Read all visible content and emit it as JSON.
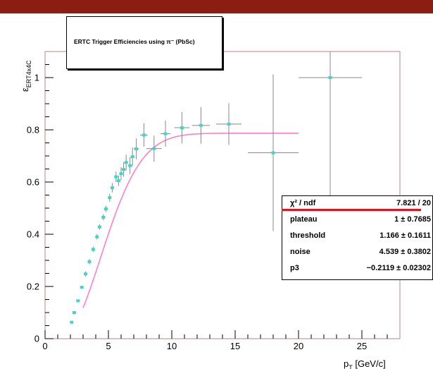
{
  "colors": {
    "top_bar": "#8c1d12",
    "frame": "#c08080",
    "fit_curve": "#ff7fc8",
    "points": "#3ed6c8",
    "error_bars": "#888888",
    "underline": "#e0141c"
  },
  "chart_data": {
    "type": "scatter",
    "title": "ERTC Trigger Efficiencies using π⁻ (PbSc)",
    "xlabel": "p_T [GeV/c]",
    "ylabel": "ε_ERT4x4C",
    "xlim": [
      0,
      28
    ],
    "ylim": [
      0,
      1.1
    ],
    "x_ticks": [
      "0",
      "5",
      "10",
      "15",
      "20",
      "25"
    ],
    "y_ticks": [
      "0",
      "0.2",
      "0.4",
      "0.6",
      "0.8",
      "1"
    ],
    "grid": false,
    "series": [
      {
        "points": [
          {
            "x": 2.1,
            "y": 0.063,
            "xerr": 0.1,
            "yerr": 0.0
          },
          {
            "x": 2.3,
            "y": 0.1,
            "xerr": 0.1,
            "yerr": 0.0
          },
          {
            "x": 2.6,
            "y": 0.145,
            "xerr": 0.1,
            "yerr": 0.0
          },
          {
            "x": 2.9,
            "y": 0.197,
            "xerr": 0.1,
            "yerr": 0.0
          },
          {
            "x": 3.2,
            "y": 0.248,
            "xerr": 0.1,
            "yerr": 0.01
          },
          {
            "x": 3.5,
            "y": 0.295,
            "xerr": 0.1,
            "yerr": 0.01
          },
          {
            "x": 3.8,
            "y": 0.342,
            "xerr": 0.1,
            "yerr": 0.01
          },
          {
            "x": 4.1,
            "y": 0.39,
            "xerr": 0.1,
            "yerr": 0.01
          },
          {
            "x": 4.3,
            "y": 0.428,
            "xerr": 0.1,
            "yerr": 0.01
          },
          {
            "x": 4.6,
            "y": 0.465,
            "xerr": 0.1,
            "yerr": 0.012
          },
          {
            "x": 4.8,
            "y": 0.497,
            "xerr": 0.1,
            "yerr": 0.012
          },
          {
            "x": 5.1,
            "y": 0.54,
            "xerr": 0.1,
            "yerr": 0.015
          },
          {
            "x": 5.3,
            "y": 0.578,
            "xerr": 0.1,
            "yerr": 0.018
          },
          {
            "x": 5.6,
            "y": 0.62,
            "xerr": 0.1,
            "yerr": 0.02
          },
          {
            "x": 5.8,
            "y": 0.605,
            "xerr": 0.1,
            "yerr": 0.02
          },
          {
            "x": 6.0,
            "y": 0.632,
            "xerr": 0.1,
            "yerr": 0.025
          },
          {
            "x": 6.2,
            "y": 0.648,
            "xerr": 0.15,
            "yerr": 0.028
          },
          {
            "x": 6.4,
            "y": 0.675,
            "xerr": 0.15,
            "yerr": 0.03
          },
          {
            "x": 6.7,
            "y": 0.663,
            "xerr": 0.15,
            "yerr": 0.032
          },
          {
            "x": 6.9,
            "y": 0.697,
            "xerr": 0.15,
            "yerr": 0.035
          },
          {
            "x": 7.2,
            "y": 0.727,
            "xerr": 0.2,
            "yerr": 0.04
          },
          {
            "x": 7.8,
            "y": 0.78,
            "xerr": 0.3,
            "yerr": 0.045
          },
          {
            "x": 8.6,
            "y": 0.728,
            "xerr": 0.6,
            "yerr": 0.05
          },
          {
            "x": 9.5,
            "y": 0.785,
            "xerr": 0.4,
            "yerr": 0.05
          },
          {
            "x": 10.8,
            "y": 0.808,
            "xerr": 0.6,
            "yerr": 0.06
          },
          {
            "x": 12.3,
            "y": 0.817,
            "xerr": 0.7,
            "yerr": 0.07
          },
          {
            "x": 14.5,
            "y": 0.822,
            "xerr": 1.0,
            "yerr": 0.08
          },
          {
            "x": 18.0,
            "y": 0.712,
            "xerr": 2.0,
            "yerr": 0.3
          },
          {
            "x": 22.5,
            "y": 1.0,
            "xerr": 2.5,
            "yerr": 0.6
          }
        ]
      }
    ],
    "fit": {
      "plateau": 0.787,
      "threshold": 1.166,
      "noise": 4.539,
      "x_start": 3.0,
      "x_end": 20.0
    }
  },
  "stats": [
    {
      "key": "χ² / ndf",
      "value": "7.821 / 20"
    },
    {
      "key": "plateau",
      "value": "1 ± 0.7685"
    },
    {
      "key": "threshold",
      "value": "1.166 ± 0.1611"
    },
    {
      "key": "noise",
      "value": "4.539 ± 0.3802"
    },
    {
      "key": "p3",
      "value": "−0.2119 ± 0.02302"
    }
  ]
}
